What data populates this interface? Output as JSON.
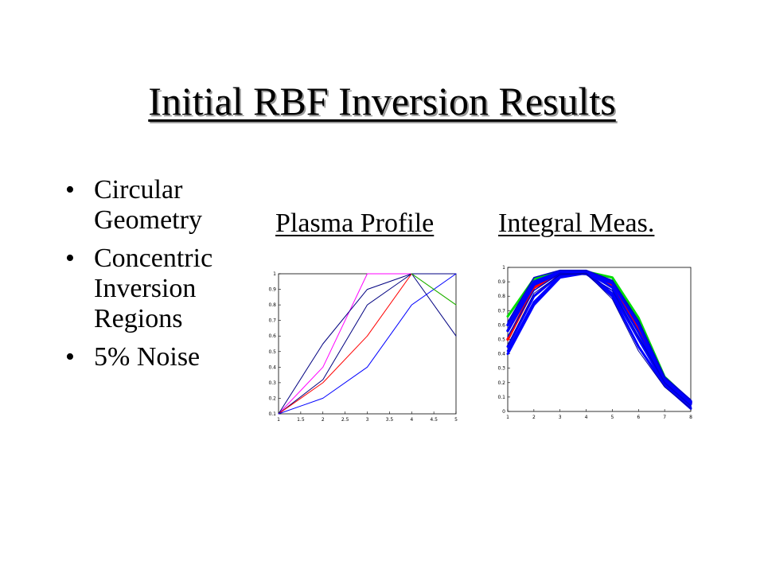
{
  "slide": {
    "title": "Initial RBF Inversion Results",
    "bullets": [
      {
        "symbol": "•",
        "text": "Circular Geometry"
      },
      {
        "symbol": "•",
        "text": "Concentric Inversion Regions"
      },
      {
        "symbol": "•",
        "text": "5% Noise"
      }
    ],
    "captions": {
      "plasma_profile": "Plasma Profile",
      "integral_meas": "Integral Meas."
    }
  },
  "chart_data": [
    {
      "type": "line",
      "title": "Plasma Profile",
      "xlabel": "",
      "ylabel": "",
      "xlim": [
        1,
        5
      ],
      "ylim": [
        0.1,
        1
      ],
      "xticks": [
        "1",
        "1.5",
        "2",
        "2.5",
        "3",
        "3.5",
        "4",
        "4.5",
        "5"
      ],
      "yticks": [
        "0.1",
        "0.2",
        "0.3",
        "0.4",
        "0.5",
        "0.6",
        "0.7",
        "0.8",
        "0.9",
        "1"
      ],
      "grid": false,
      "x": [
        1,
        2,
        3,
        4,
        5
      ],
      "series": [
        {
          "color": "#ff00ff",
          "values": [
            0.1,
            0.4,
            1.0,
            1.0,
            1.0
          ]
        },
        {
          "color": "#000080",
          "values": [
            0.1,
            0.55,
            0.9,
            1.0,
            1.0
          ]
        },
        {
          "color": "#000080",
          "values": [
            0.1,
            0.32,
            0.8,
            1.0,
            0.6
          ]
        },
        {
          "color": "#ff0000",
          "values": [
            0.1,
            0.3,
            0.6,
            1.0,
            0.8
          ]
        },
        {
          "color": "#0000ff",
          "values": [
            0.1,
            0.2,
            0.4,
            0.8,
            1.0
          ]
        },
        {
          "color": "#00cc00",
          "values": [
            null,
            null,
            null,
            1.0,
            0.8
          ]
        }
      ]
    },
    {
      "type": "line",
      "title": "Integral Meas.",
      "xlabel": "",
      "ylabel": "",
      "xlim": [
        1,
        8
      ],
      "ylim": [
        0,
        1
      ],
      "xticks": [
        "1",
        "2",
        "3",
        "4",
        "5",
        "6",
        "7",
        "8"
      ],
      "yticks": [
        "0",
        "0.1",
        "0.2",
        "0.3",
        "0.4",
        "0.5",
        "0.6",
        "0.7",
        "0.8",
        "0.9",
        "1"
      ],
      "grid": false,
      "x": [
        1,
        2,
        3,
        4,
        5,
        6,
        7,
        8
      ],
      "series": [
        {
          "color": "#00dd00",
          "width": 3,
          "values": [
            0.66,
            0.92,
            0.97,
            0.97,
            0.93,
            0.65,
            0.24,
            0.07
          ]
        },
        {
          "color": "#ff0000",
          "width": 3.5,
          "values": [
            0.5,
            0.86,
            0.96,
            0.96,
            0.88,
            0.58,
            0.21,
            0.06
          ]
        },
        {
          "color": "#0000ff",
          "width": 3.5,
          "values": [
            0.6,
            0.9,
            0.97,
            0.97,
            0.9,
            0.6,
            0.22,
            0.06
          ]
        },
        {
          "color": "#0000ff",
          "width": 3.5,
          "values": [
            0.56,
            0.88,
            0.96,
            0.96,
            0.89,
            0.61,
            0.23,
            0.07
          ]
        },
        {
          "color": "#0000ff",
          "width": 3,
          "values": [
            0.45,
            0.8,
            0.95,
            0.97,
            0.86,
            0.55,
            0.2,
            0.05
          ]
        },
        {
          "color": "#0000ff",
          "width": 3,
          "values": [
            0.4,
            0.74,
            0.93,
            0.96,
            0.8,
            0.45,
            0.18,
            0.02
          ]
        },
        {
          "color": "#0000ff",
          "width": 2.5,
          "values": [
            0.42,
            0.76,
            0.94,
            0.97,
            0.82,
            0.5,
            0.19,
            0.03
          ]
        },
        {
          "color": "#0000cc",
          "width": 1.5,
          "values": [
            0.62,
            0.93,
            0.98,
            0.98,
            0.91,
            0.63,
            0.24,
            0.08
          ]
        },
        {
          "color": "#0000cc",
          "width": 1.5,
          "values": [
            0.52,
            0.84,
            0.96,
            0.95,
            0.84,
            0.52,
            0.2,
            0.04
          ]
        },
        {
          "color": "#000099",
          "width": 1,
          "values": [
            0.46,
            0.82,
            0.95,
            0.96,
            0.78,
            0.42,
            0.17,
            0.02
          ]
        }
      ]
    }
  ]
}
